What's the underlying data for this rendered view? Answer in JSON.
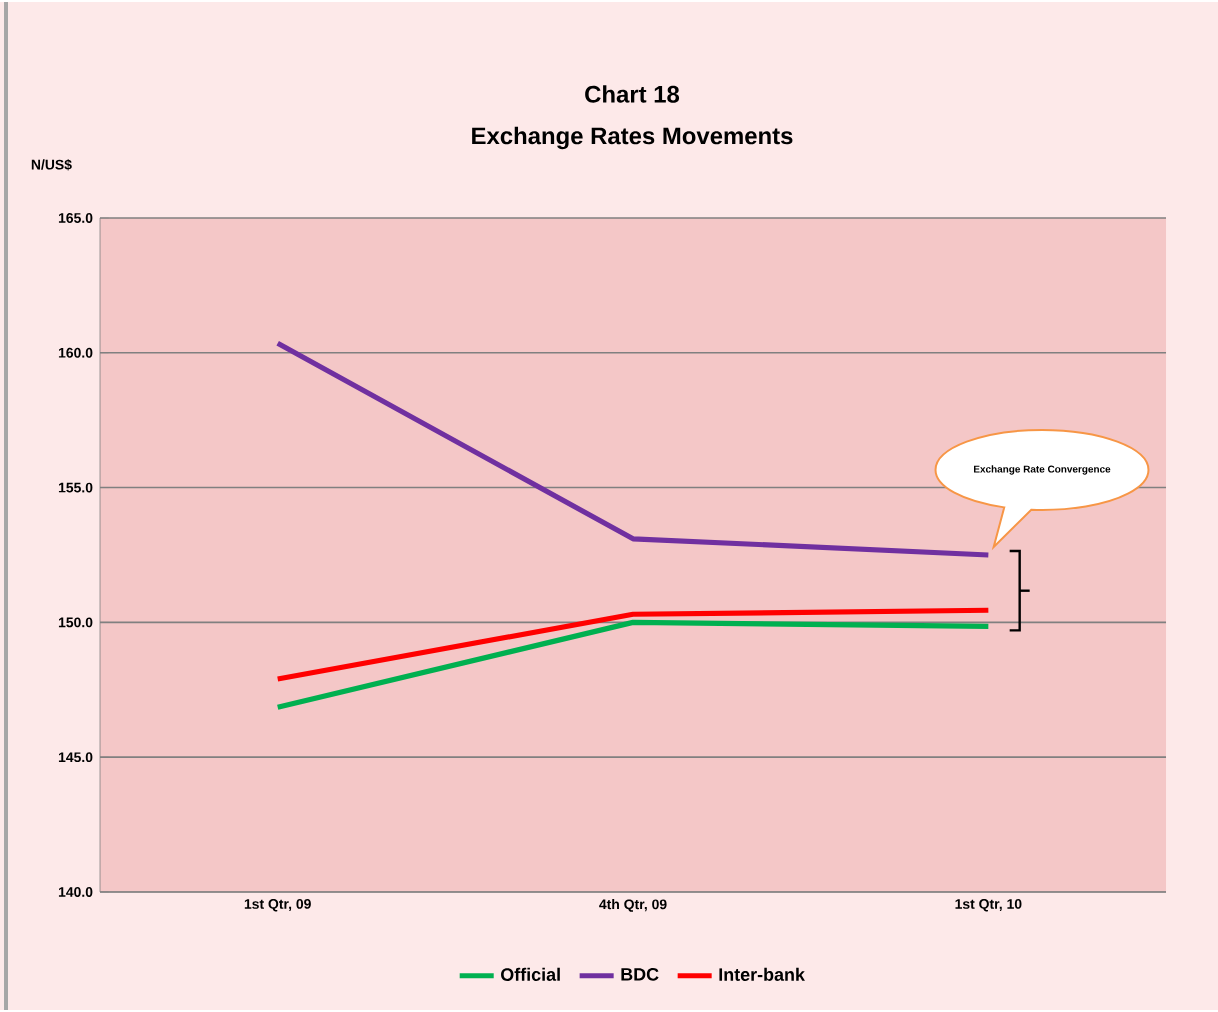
{
  "chart_data": {
    "type": "line",
    "title": "Chart 18",
    "subtitle": "Exchange Rates Movements",
    "ylabel": "N/US$",
    "categories": [
      "1st Qtr, 09",
      "4th Qtr, 09",
      "1st Qtr, 10"
    ],
    "series": [
      {
        "name": "Official",
        "color": "#00b050",
        "values": [
          146.85,
          150.0,
          149.85
        ]
      },
      {
        "name": "BDC",
        "color": "#7030a0",
        "values": [
          160.35,
          153.1,
          152.5
        ]
      },
      {
        "name": "Inter-bank",
        "color": "#ff0000",
        "values": [
          147.9,
          150.3,
          150.45
        ]
      }
    ],
    "ylim": [
      140,
      165
    ],
    "yticks": [
      {
        "value": 140,
        "label": "140.0"
      },
      {
        "value": 145,
        "label": "145.0"
      },
      {
        "value": 150,
        "label": "150.0"
      },
      {
        "value": 155,
        "label": "155.0"
      },
      {
        "value": 160,
        "label": "160.0"
      },
      {
        "value": 165,
        "label": "165.0"
      }
    ],
    "grid": "y",
    "legend": "bottom",
    "marker": "none",
    "line_style": "solid",
    "annotations": [
      "Exchange Rate Convergence"
    ]
  }
}
